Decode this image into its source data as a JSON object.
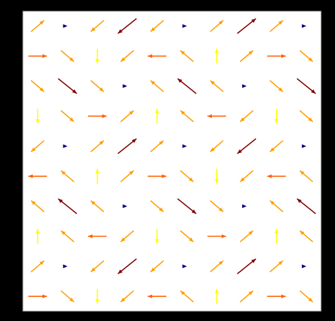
{
  "chart_data": {
    "type": "quiver",
    "colormap": "jet",
    "x": [
      0,
      1,
      2,
      3,
      4,
      5,
      6,
      7,
      8,
      9
    ],
    "y": [
      0,
      1,
      2,
      3,
      4,
      5,
      6,
      7,
      8,
      9
    ],
    "xlim": [
      -0.5,
      9.5
    ],
    "ylim": [
      -0.5,
      9.5
    ],
    "u": [
      [
        1,
        0.7,
        0,
        -0.7,
        -1,
        -0.7,
        0,
        0.7,
        1,
        0.7
      ],
      [
        0.7,
        0,
        -0.7,
        -1,
        -0.7,
        0,
        0.7,
        1,
        0.7,
        0
      ],
      [
        0,
        -0.7,
        -1,
        -0.7,
        0,
        0.7,
        1,
        0.7,
        0,
        -0.7
      ],
      [
        -0.7,
        -1,
        -0.7,
        0,
        0.7,
        1,
        0.7,
        0,
        -0.7,
        -1
      ],
      [
        -1,
        -0.7,
        0,
        0.7,
        1,
        0.7,
        0,
        -0.7,
        -1,
        -0.7
      ],
      [
        -0.7,
        0,
        0.7,
        1,
        0.7,
        0,
        -0.7,
        -1,
        -0.7,
        0
      ],
      [
        0,
        0.7,
        1,
        0.7,
        0,
        -0.7,
        -1,
        -0.7,
        0,
        0.7
      ],
      [
        0.7,
        1,
        0.7,
        0,
        -0.7,
        -1,
        -0.7,
        0,
        0.7,
        1
      ],
      [
        1,
        0.7,
        0,
        -0.7,
        -1,
        -0.7,
        0,
        0.7,
        1,
        0.7
      ],
      [
        0.7,
        0,
        -0.7,
        -1,
        -0.7,
        0,
        0.7,
        1,
        0.7,
        0
      ]
    ],
    "v": [
      [
        0,
        -0.6,
        -0.8,
        -0.6,
        0,
        0.6,
        0.8,
        0.6,
        0,
        -0.6
      ],
      [
        0.6,
        0,
        -0.6,
        -0.8,
        -0.6,
        0,
        0.6,
        0.8,
        0.6,
        0
      ],
      [
        0.8,
        0.6,
        0,
        -0.6,
        -0.8,
        -0.6,
        0,
        0.6,
        0.8,
        0.6
      ],
      [
        0.6,
        0.8,
        0.6,
        0,
        -0.6,
        -0.8,
        -0.6,
        0,
        0.6,
        0.8
      ],
      [
        0,
        0.6,
        0.8,
        0.6,
        0,
        -0.6,
        -0.8,
        -0.6,
        0,
        0.6
      ],
      [
        -0.6,
        0,
        0.6,
        0.8,
        0.6,
        0,
        -0.6,
        -0.8,
        -0.6,
        0
      ],
      [
        -0.8,
        -0.6,
        0,
        0.6,
        0.8,
        0.6,
        0,
        -0.6,
        -0.8,
        -0.6
      ],
      [
        -0.6,
        -0.8,
        -0.6,
        0,
        0.6,
        0.8,
        0.6,
        0,
        -0.6,
        -0.8
      ],
      [
        0,
        -0.6,
        -0.8,
        -0.6,
        0,
        0.6,
        0.8,
        0.6,
        0,
        -0.6
      ],
      [
        0.6,
        0,
        -0.6,
        -0.8,
        -0.6,
        0,
        0.6,
        0.8,
        0.6,
        0
      ]
    ]
  }
}
